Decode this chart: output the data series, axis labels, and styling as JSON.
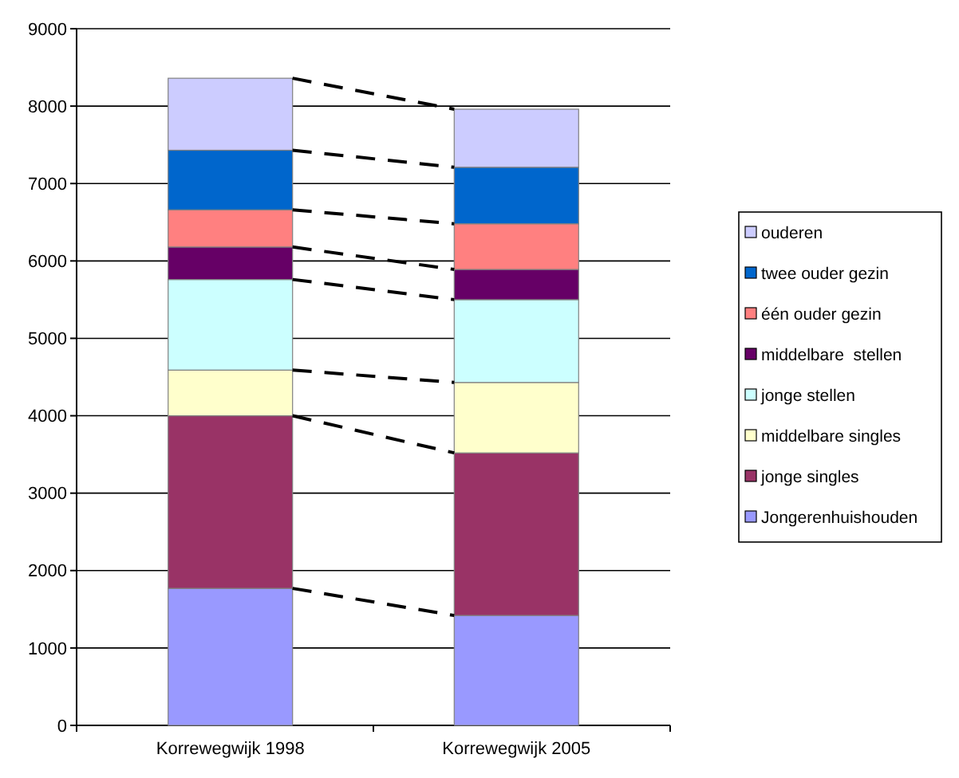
{
  "chart_data": {
    "type": "bar",
    "stacked": true,
    "categories": [
      "Korrewegwijk 1998",
      "Korrewegwijk 2005"
    ],
    "series": [
      {
        "name": "Jongerenhuishouden",
        "color": "#9999ff",
        "values": [
          1770,
          1420
        ]
      },
      {
        "name": "jonge singles",
        "color": "#993366",
        "values": [
          2230,
          2100
        ]
      },
      {
        "name": "middelbare singles",
        "color": "#ffffcc",
        "values": [
          590,
          910
        ]
      },
      {
        "name": "jonge stellen",
        "color": "#ccffff",
        "values": [
          1170,
          1070
        ]
      },
      {
        "name": "middelbare  stellen",
        "color": "#660066",
        "values": [
          420,
          390
        ]
      },
      {
        "name": "één ouder gezin",
        "color": "#ff8080",
        "values": [
          480,
          590
        ]
      },
      {
        "name": "twee ouder gezin",
        "color": "#0066cc",
        "values": [
          770,
          730
        ]
      },
      {
        "name": "ouderen",
        "color": "#ccccff",
        "values": [
          930,
          750
        ]
      }
    ],
    "ylim": [
      0,
      9000
    ],
    "yticks": [
      0,
      1000,
      2000,
      3000,
      4000,
      5000,
      6000,
      7000,
      8000,
      9000
    ],
    "grid": "y",
    "legend": "right"
  }
}
